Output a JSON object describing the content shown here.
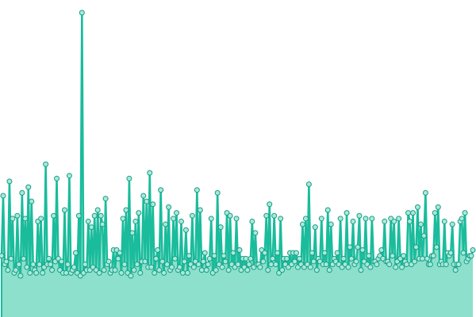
{
  "colors": {
    "background": "#ffffff",
    "area_fill": "#8ce0cc",
    "line": "#1abc9c",
    "marker_fill": "#a8e9db",
    "marker_stroke": "#179e84"
  },
  "chart_data": {
    "type": "line",
    "title": "",
    "xlabel": "",
    "ylabel": "",
    "grid": false,
    "legend": "none",
    "show_axes": false,
    "xlim": [
      0,
      300
    ],
    "ylim": [
      0,
      100
    ],
    "x": [
      0,
      1,
      2,
      3,
      4,
      5,
      6,
      7,
      8,
      9,
      10,
      11,
      12,
      13,
      14,
      15,
      16,
      17,
      18,
      19,
      20,
      21,
      22,
      23,
      24,
      25,
      26,
      27,
      28,
      29,
      30,
      31,
      32,
      33,
      34,
      35,
      36,
      37,
      38,
      39,
      40,
      41,
      42,
      43,
      44,
      45,
      46,
      47,
      48,
      49,
      50,
      51,
      52,
      53,
      54,
      55,
      56,
      57,
      58,
      59,
      60,
      61,
      62,
      63,
      64,
      65,
      66,
      67,
      68,
      69,
      70,
      71,
      72,
      73,
      74,
      75,
      76,
      77,
      78,
      79,
      80,
      81,
      82,
      83,
      84,
      85,
      86,
      87,
      88,
      89,
      90,
      91,
      92,
      93,
      94,
      95,
      96,
      97,
      98,
      99,
      100,
      101,
      102,
      103,
      104,
      105,
      106,
      107,
      108,
      109,
      110,
      111,
      112,
      113,
      114,
      115,
      116,
      117,
      118,
      119,
      120,
      121,
      122,
      123,
      124,
      125,
      126,
      127,
      128,
      129,
      130,
      131,
      132,
      133,
      134,
      135,
      136,
      137,
      138,
      139,
      140,
      141,
      142,
      143,
      144,
      145,
      146,
      147,
      148,
      149,
      150,
      151,
      152,
      153,
      154,
      155,
      156,
      157,
      158,
      159,
      160,
      161,
      162,
      163,
      164,
      165,
      166,
      167,
      168,
      169,
      170,
      171,
      172,
      173,
      174,
      175,
      176,
      177,
      178,
      179,
      180,
      181,
      182,
      183,
      184,
      185,
      186,
      187,
      188,
      189,
      190,
      191,
      192,
      193,
      194,
      195,
      196,
      197,
      198,
      199,
      200,
      201,
      202,
      203,
      204,
      205,
      206,
      207,
      208,
      209,
      210,
      211,
      212,
      213,
      214,
      215,
      216,
      217,
      218,
      219,
      220,
      221,
      222,
      223,
      224,
      225,
      226,
      227,
      228,
      229,
      230,
      231,
      232,
      233,
      234,
      235,
      236,
      237,
      238,
      239,
      240,
      241,
      242,
      243,
      244,
      245,
      246,
      247,
      248,
      249,
      250,
      251,
      252,
      253,
      254,
      255,
      256,
      257,
      258,
      259,
      260,
      261,
      262,
      263,
      264,
      265,
      266,
      267,
      268,
      269,
      270,
      271,
      272,
      273,
      274,
      275,
      276,
      277,
      278,
      279,
      280,
      281,
      282,
      283,
      284,
      285,
      286,
      287,
      288,
      289,
      290,
      291,
      292,
      293,
      294,
      295,
      296,
      297,
      298,
      299
    ],
    "series": [
      {
        "values": [
          15,
          36,
          12,
          13,
          10,
          41,
          14,
          28,
          9,
          10,
          29,
          12,
          8,
          37,
          14,
          28,
          11,
          39,
          9,
          34,
          12,
          10,
          9,
          27,
          12,
          28,
          9,
          11,
          47,
          12,
          14,
          12,
          10,
          29,
          13,
          42,
          14,
          10,
          13,
          9,
          31,
          9,
          12,
          43,
          9,
          10,
          11,
          16,
          9,
          29,
          8,
          100,
          9,
          12,
          10,
          27,
          10,
          25,
          11,
          29,
          10,
          31,
          9,
          29,
          26,
          10,
          35,
          12,
          13,
          9,
          10,
          17,
          10,
          17,
          14,
          16,
          9,
          28,
          12,
          31,
          9,
          42,
          8,
          23,
          10,
          27,
          12,
          30,
          9,
          13,
          36,
          13,
          34,
          11,
          44,
          11,
          33,
          9,
          14,
          17,
          10,
          38,
          13,
          9,
          26,
          12,
          32,
          10,
          11,
          28,
          14,
          30,
          10,
          11,
          27,
          9,
          13,
          24,
          9,
          15,
          12,
          29,
          11,
          13,
          38,
          12,
          31,
          10,
          13,
          16,
          10,
          12,
          14,
          28,
          9,
          15,
          10,
          37,
          12,
          25,
          11,
          15,
          13,
          30,
          10,
          29,
          12,
          16,
          11,
          28,
          12,
          17,
          10,
          14,
          11,
          14,
          10,
          12,
          14,
          27,
          11,
          23,
          12,
          12,
          11,
          17,
          13,
          16,
          29,
          10,
          33,
          12,
          14,
          29,
          12,
          16,
          9,
          28,
          10,
          14,
          12,
          14,
          11,
          16,
          12,
          16,
          13,
          16,
          11,
          14,
          12,
          26,
          11,
          28,
          12,
          40,
          11,
          16,
          13,
          25,
          10,
          14,
          13,
          28,
          12,
          16,
          12,
          31,
          10,
          26,
          12,
          14,
          13,
          16,
          12,
          28,
          11,
          14,
          12,
          30,
          11,
          18,
          14,
          27,
          12,
          13,
          18,
          29,
          10,
          17,
          13,
          28,
          12,
          15,
          11,
          28,
          13,
          13,
          12,
          14,
          15,
          17,
          14,
          27,
          13,
          13,
          12,
          28,
          15,
          27,
          11,
          13,
          28,
          14,
          11,
          15,
          13,
          12,
          30,
          27,
          12,
          30,
          13,
          18,
          32,
          14,
          26,
          14,
          22,
          37,
          14,
          12,
          12,
          15,
          15,
          30,
          18,
          32,
          12,
          13,
          12,
          27,
          12,
          16,
          15,
          16,
          26,
          12,
          10,
          12,
          12,
          27,
          28,
          16,
          30,
          13,
          14,
          15,
          15,
          17
        ]
      }
    ]
  }
}
